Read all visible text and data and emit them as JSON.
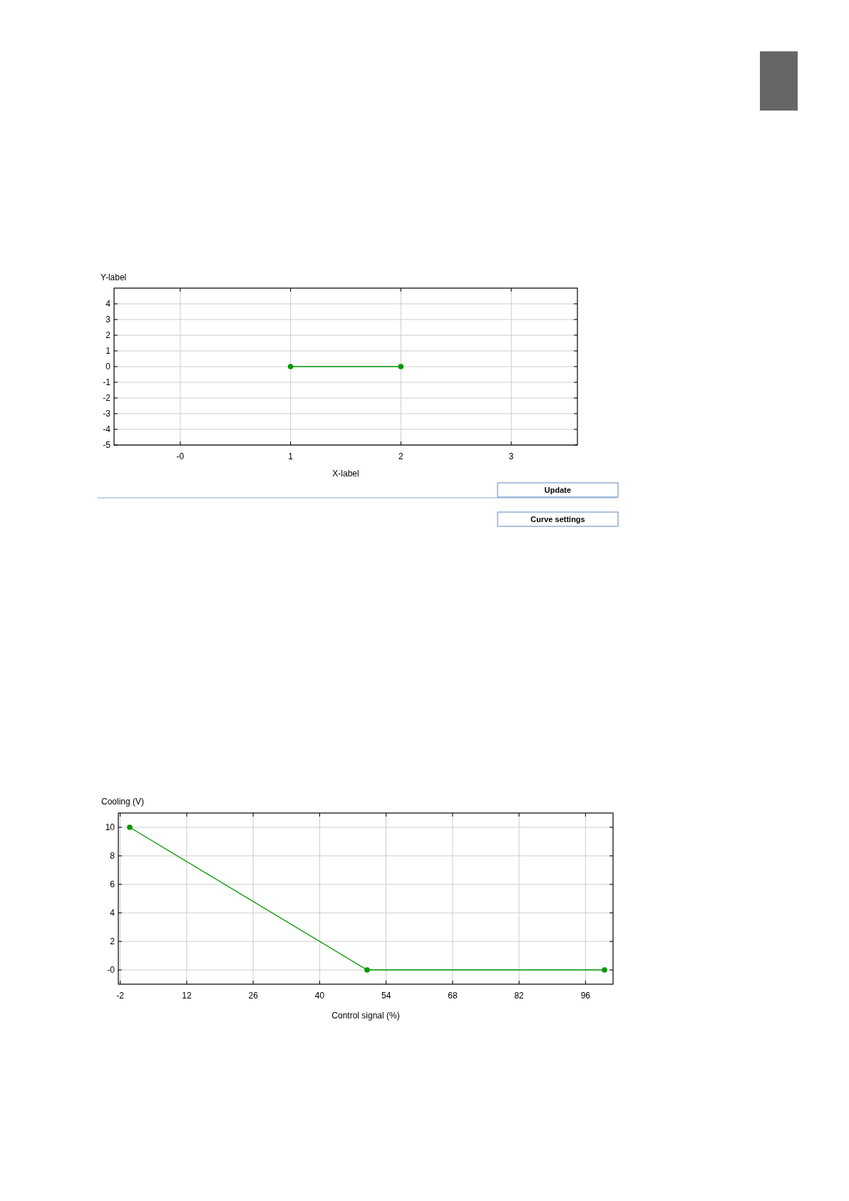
{
  "chart_data": [
    {
      "type": "line",
      "xlabel": "X-label",
      "ylabel": "Y-label",
      "x": [
        1,
        2
      ],
      "xlim": [
        -0.6,
        3.6
      ],
      "ylim": [
        -5,
        5
      ],
      "xticks": [
        {
          "value": 0,
          "label": "-0"
        },
        1,
        2,
        3
      ],
      "yticks": [
        -5,
        -4,
        -3,
        -2,
        -1,
        0,
        1,
        2,
        3,
        4
      ],
      "grid": true,
      "marker": "circle",
      "line_style": "solid",
      "series": [
        {
          "color": "#009900",
          "values": [
            0,
            0
          ]
        }
      ],
      "annotations": [
        "Update",
        "Curve settings"
      ]
    },
    {
      "type": "line",
      "xlabel": "Control signal (%)",
      "ylabel": "Cooling (V)",
      "x": [
        0,
        50,
        100
      ],
      "xlim": [
        -2.4,
        101.8
      ],
      "ylim": [
        -1,
        11
      ],
      "xticks": [
        -2,
        12,
        26,
        40,
        54,
        68,
        82,
        96
      ],
      "yticks": [
        {
          "value": 0,
          "label": "-0"
        },
        2,
        4,
        6,
        8,
        10
      ],
      "grid": true,
      "marker": "circle",
      "line_style": "solid",
      "series": [
        {
          "color": "#009900",
          "values": [
            10,
            0,
            0
          ]
        }
      ]
    }
  ]
}
